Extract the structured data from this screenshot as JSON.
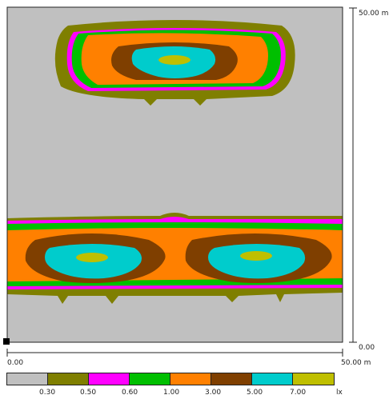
{
  "scale": {
    "top_right_label": "50.00 m",
    "right_bottom_label": "0.00",
    "bottom_left_label": "0.00",
    "bottom_right_label": "50.00 m"
  },
  "legend": {
    "unit": "lx",
    "colors": [
      "#c0c0c0",
      "#7f7f00",
      "#ff00ff",
      "#00bf00",
      "#ff8000",
      "#7f3f00",
      "#00cccc",
      "#bfbf00"
    ],
    "thresholds": [
      "0.30",
      "0.50",
      "0.60",
      "1.00",
      "3.00",
      "5.00",
      "7.00"
    ]
  },
  "isolux_colors": {
    "background": "#c0c0c0",
    "olive": "#7f7f00",
    "magenta": "#ff00ff",
    "green": "#00bf00",
    "orange": "#ff8000",
    "brown": "#7f3f00",
    "cyan": "#00cccc",
    "yellow": "#bfbf00"
  }
}
